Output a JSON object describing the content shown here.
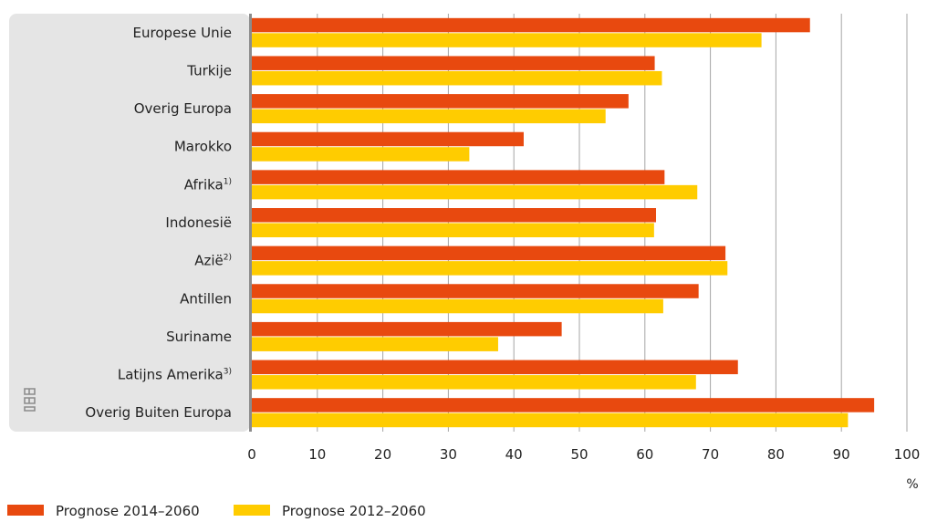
{
  "chart_data": {
    "type": "bar",
    "orientation": "horizontal",
    "categories": [
      {
        "label": "Europese Unie",
        "sup": ""
      },
      {
        "label": "Turkije",
        "sup": ""
      },
      {
        "label": "Overig Europa",
        "sup": ""
      },
      {
        "label": "Marokko",
        "sup": ""
      },
      {
        "label": "Afrika",
        "sup": "1)"
      },
      {
        "label": "Indonesië",
        "sup": ""
      },
      {
        "label": "Azië",
        "sup": "2)"
      },
      {
        "label": "Antillen",
        "sup": ""
      },
      {
        "label": "Suriname",
        "sup": ""
      },
      {
        "label": "Latijns Amerika",
        "sup": "3)"
      },
      {
        "label": "Overig Buiten Europa",
        "sup": ""
      }
    ],
    "series": [
      {
        "name": "Prognose 2014–2060",
        "color": "#e8490f",
        "values": [
          85.2,
          61.5,
          57.5,
          41.5,
          63.0,
          61.7,
          72.3,
          68.2,
          47.3,
          74.2,
          95.0
        ]
      },
      {
        "name": "Prognose 2012–2060",
        "color": "#ffcc00",
        "values": [
          77.8,
          62.6,
          54.0,
          33.2,
          68.0,
          61.4,
          72.6,
          62.8,
          37.6,
          67.8,
          91.0
        ]
      }
    ],
    "xlim": [
      0,
      100
    ],
    "xticks": [
      0,
      10,
      20,
      30,
      40,
      50,
      60,
      70,
      80,
      90,
      100
    ],
    "unit": "%",
    "grid": true,
    "legend": "bottom-left"
  }
}
